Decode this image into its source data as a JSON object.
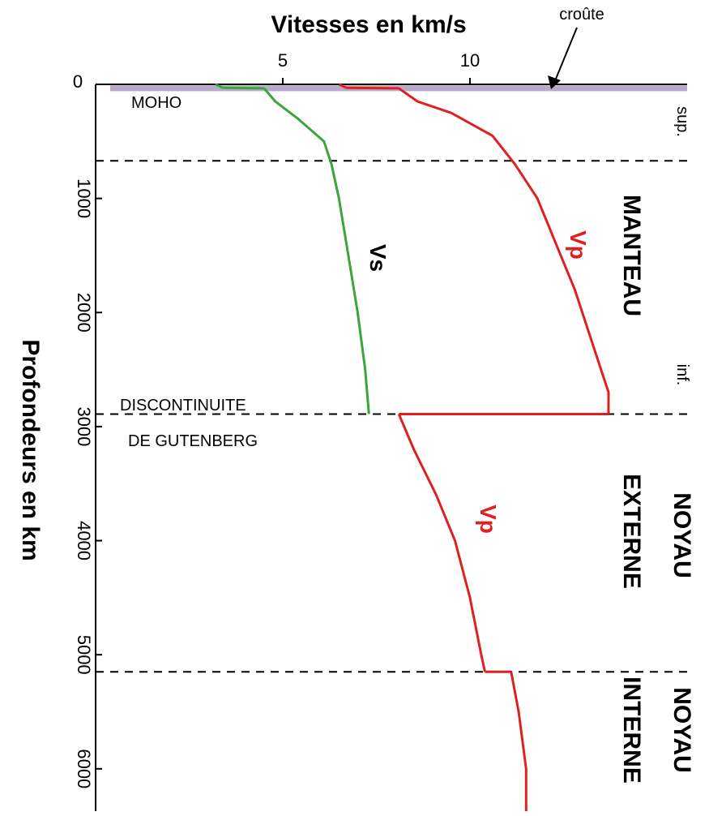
{
  "chart_data": {
    "type": "line",
    "title": "",
    "xlabel": "Vitesses en km/s",
    "ylabel": "Profondeurs en km",
    "xlim": [
      0,
      15.8
    ],
    "ylim": [
      0,
      6371
    ],
    "x_ticks": [
      5,
      10
    ],
    "y_ticks": [
      0,
      1000,
      2000,
      3000,
      4000,
      5000,
      6000
    ],
    "series": [
      {
        "name": "Vp",
        "color": "#e02020",
        "segments": [
          [
            [
              6.5,
              0
            ],
            [
              6.7,
              30
            ]
          ],
          [
            [
              8.1,
              35
            ],
            [
              8.6,
              150
            ],
            [
              9.5,
              250
            ],
            [
              10.6,
              450
            ],
            [
              11.2,
              700
            ],
            [
              11.8,
              1000
            ],
            [
              12.3,
              1400
            ],
            [
              12.8,
              1800
            ],
            [
              13.3,
              2300
            ],
            [
              13.7,
              2700
            ],
            [
              13.7,
              2890
            ]
          ],
          [
            [
              8.1,
              2890
            ],
            [
              8.5,
              3200
            ],
            [
              9.1,
              3600
            ],
            [
              9.6,
              4000
            ],
            [
              10.0,
              4500
            ],
            [
              10.3,
              5000
            ],
            [
              10.4,
              5150
            ]
          ],
          [
            [
              11.1,
              5150
            ],
            [
              11.3,
              5500
            ],
            [
              11.5,
              6000
            ],
            [
              11.5,
              6371
            ]
          ]
        ]
      },
      {
        "name": "Vs",
        "color": "#3aa53a",
        "segments": [
          [
            [
              3.2,
              0
            ],
            [
              3.4,
              30
            ]
          ],
          [
            [
              4.5,
              35
            ],
            [
              4.8,
              150
            ],
            [
              5.4,
              300
            ],
            [
              6.1,
              500
            ],
            [
              6.3,
              700
            ],
            [
              6.5,
              1000
            ],
            [
              6.7,
              1400
            ],
            [
              7.0,
              2000
            ],
            [
              7.2,
              2500
            ],
            [
              7.3,
              2890
            ]
          ]
        ]
      }
    ],
    "boundaries": [
      {
        "name": "MOHO",
        "depth": 35,
        "color": "#b8a9cc"
      },
      {
        "depth": 670
      },
      {
        "depth": 2890
      },
      {
        "depth": 5150
      }
    ]
  },
  "labels": {
    "x_axis_title": "Vitesses en km/s",
    "y_axis_title": "Profondeurs en km",
    "crust": "croûte",
    "moho": "MOHO",
    "discontinuity_line1": "DISCONTINUITE",
    "discontinuity_line2": "DE GUTENBERG",
    "vp": "Vp",
    "vs": "Vs",
    "sup": "sup.",
    "inf": "inf.",
    "manteau": "MANTEAU",
    "noyau_ext_1": "NOYAU",
    "noyau_ext_2": "EXTERNE",
    "noyau_int_1": "NOYAU",
    "noyau_int_2": "INTERNE"
  }
}
